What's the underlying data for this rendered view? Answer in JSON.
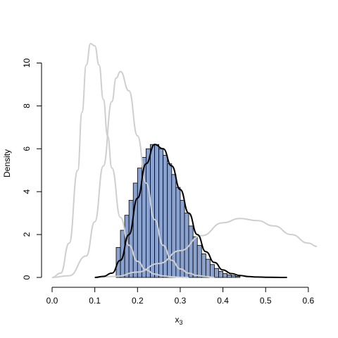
{
  "chart_data": {
    "type": "bar",
    "xlabel_main": "x",
    "xlabel_sub": "3",
    "ylabel": "Density",
    "xlim": [
      0.0,
      0.62
    ],
    "ylim": [
      0,
      11
    ],
    "xticks": [
      0.0,
      0.1,
      0.2,
      0.3,
      0.4,
      0.5,
      0.6
    ],
    "xtick_labels": [
      "0.0",
      "0.1",
      "0.2",
      "0.3",
      "0.4",
      "0.5",
      "0.6"
    ],
    "yticks": [
      0,
      2,
      4,
      6,
      8,
      10
    ],
    "ytick_labels": [
      "0",
      "2",
      "4",
      "6",
      "8",
      "10"
    ],
    "grid": false,
    "histogram": {
      "bin_width": 0.01,
      "bin_starts": [
        0.15,
        0.16,
        0.17,
        0.18,
        0.19,
        0.2,
        0.21,
        0.22,
        0.23,
        0.24,
        0.25,
        0.26,
        0.27,
        0.28,
        0.29,
        0.3,
        0.31,
        0.32,
        0.33,
        0.34,
        0.35,
        0.36,
        0.37,
        0.38,
        0.39,
        0.4,
        0.41,
        0.42,
        0.43
      ],
      "values": [
        1.4,
        2.2,
        2.9,
        3.6,
        4.4,
        5.1,
        5.6,
        6.0,
        6.2,
        6.2,
        6.0,
        5.7,
        5.3,
        4.8,
        4.2,
        3.6,
        3.0,
        2.4,
        1.9,
        1.5,
        1.1,
        0.85,
        0.6,
        0.42,
        0.28,
        0.18,
        0.12,
        0.08,
        0.05
      ],
      "color": "#8aa2cf"
    },
    "curves": [
      {
        "color": "#000000",
        "x": [
          0.1,
          0.12,
          0.14,
          0.16,
          0.18,
          0.2,
          0.22,
          0.24,
          0.26,
          0.28,
          0.3,
          0.32,
          0.34,
          0.36,
          0.38,
          0.4,
          0.42,
          0.44,
          0.46,
          0.48,
          0.5,
          0.55
        ],
        "y": [
          0.0,
          0.05,
          0.2,
          0.8,
          2.0,
          3.7,
          5.3,
          6.2,
          6.0,
          5.2,
          4.1,
          3.0,
          2.0,
          1.2,
          0.7,
          0.35,
          0.18,
          0.09,
          0.04,
          0.02,
          0.01,
          0.0
        ]
      },
      {
        "color": "#cfcfcf",
        "x": [
          0.0,
          0.02,
          0.04,
          0.06,
          0.07,
          0.08,
          0.09,
          0.1,
          0.11,
          0.12,
          0.13,
          0.14,
          0.16,
          0.18,
          0.2,
          0.22,
          0.24,
          0.26,
          0.28,
          0.3,
          0.32
        ],
        "y": [
          0.0,
          0.2,
          1.6,
          5.0,
          7.7,
          9.9,
          10.9,
          10.8,
          9.9,
          8.3,
          6.6,
          5.1,
          2.8,
          1.5,
          0.75,
          0.35,
          0.16,
          0.07,
          0.03,
          0.01,
          0.0
        ]
      },
      {
        "color": "#cfcfcf",
        "x": [
          0.0,
          0.04,
          0.08,
          0.1,
          0.12,
          0.14,
          0.15,
          0.16,
          0.18,
          0.2,
          0.22,
          0.24,
          0.26,
          0.28,
          0.3,
          0.32,
          0.34,
          0.36,
          0.38
        ],
        "y": [
          0.0,
          0.08,
          1.0,
          2.6,
          5.2,
          8.2,
          9.3,
          9.6,
          8.7,
          6.6,
          4.4,
          2.7,
          1.5,
          0.8,
          0.4,
          0.2,
          0.09,
          0.04,
          0.0
        ]
      },
      {
        "color": "#cfcfcf",
        "x": [
          0.1,
          0.15,
          0.2,
          0.25,
          0.3,
          0.35,
          0.4,
          0.44,
          0.48,
          0.52,
          0.56,
          0.6,
          0.62
        ],
        "y": [
          0.0,
          0.05,
          0.25,
          0.65,
          1.25,
          1.95,
          2.55,
          2.75,
          2.65,
          2.4,
          2.0,
          1.6,
          1.45
        ]
      }
    ]
  }
}
